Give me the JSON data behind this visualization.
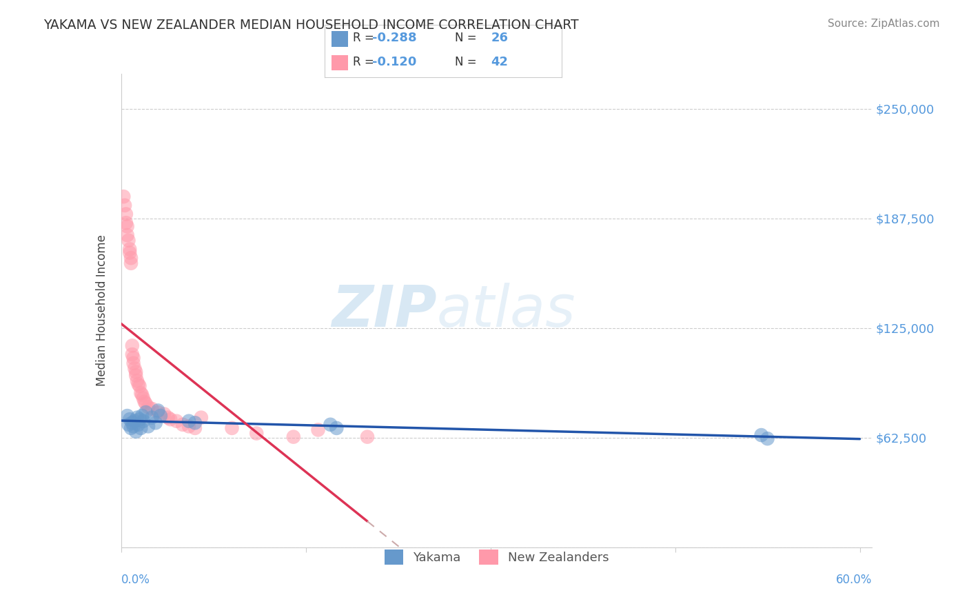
{
  "title": "YAKAMA VS NEW ZEALANDER MEDIAN HOUSEHOLD INCOME CORRELATION CHART",
  "source": "Source: ZipAtlas.com",
  "ylabel": "Median Household Income",
  "y_ticks": [
    0,
    62500,
    125000,
    187500,
    250000
  ],
  "y_tick_labels": [
    "",
    "$62,500",
    "$125,000",
    "$187,500",
    "$250,000"
  ],
  "x_min": 0.0,
  "x_max": 0.6,
  "y_min": 0,
  "y_max": 270000,
  "yakama_color": "#6699cc",
  "nz_color": "#ff99aa",
  "trend_blue": "#2255aa",
  "trend_pink": "#dd3355",
  "dashed_color": "#ccaaaa",
  "watermark_zip": "ZIP",
  "watermark_atlas": "atlas",
  "legend_label_blue": "Yakama",
  "legend_label_pink": "New Zealanders",
  "yakama_x": [
    0.005,
    0.006,
    0.007,
    0.008,
    0.009,
    0.01,
    0.011,
    0.012,
    0.013,
    0.014,
    0.015,
    0.016,
    0.017,
    0.018,
    0.02,
    0.022,
    0.025,
    0.028,
    0.03,
    0.032,
    0.055,
    0.06,
    0.17,
    0.175,
    0.52,
    0.525
  ],
  "yakama_y": [
    75000,
    70000,
    73000,
    68000,
    71000,
    69000,
    72000,
    66000,
    74000,
    70000,
    73000,
    68000,
    75000,
    72000,
    77000,
    69000,
    74000,
    71000,
    78000,
    75000,
    72000,
    71000,
    70000,
    68000,
    64000,
    62000
  ],
  "nz_x": [
    0.002,
    0.003,
    0.004,
    0.004,
    0.005,
    0.005,
    0.006,
    0.007,
    0.007,
    0.008,
    0.008,
    0.009,
    0.009,
    0.01,
    0.01,
    0.011,
    0.012,
    0.012,
    0.013,
    0.014,
    0.015,
    0.016,
    0.017,
    0.018,
    0.019,
    0.02,
    0.022,
    0.025,
    0.03,
    0.035,
    0.038,
    0.04,
    0.045,
    0.05,
    0.055,
    0.06,
    0.065,
    0.09,
    0.11,
    0.14,
    0.16,
    0.2
  ],
  "nz_y": [
    200000,
    195000,
    185000,
    190000,
    183000,
    178000,
    175000,
    170000,
    168000,
    165000,
    162000,
    115000,
    110000,
    108000,
    105000,
    102000,
    100000,
    98000,
    95000,
    93000,
    92000,
    88000,
    87000,
    85000,
    83000,
    82000,
    80000,
    79000,
    77000,
    76000,
    74000,
    73000,
    72000,
    70000,
    69000,
    68000,
    74000,
    68000,
    65000,
    63000,
    67000,
    63000
  ]
}
